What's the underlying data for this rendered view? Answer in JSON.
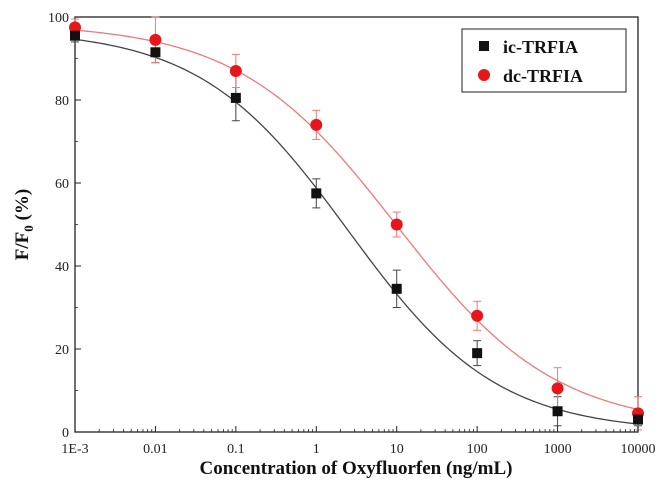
{
  "chart_data": {
    "type": "scatter",
    "xscale": "log",
    "x": [
      0.001,
      0.01,
      0.1,
      1,
      10,
      100,
      1000,
      10000
    ],
    "xlim": [
      0.001,
      10000
    ],
    "ylim": [
      0,
      100
    ],
    "x_tick_labels": [
      "1E-3",
      "0.01",
      "0.1",
      "1",
      "10",
      "100",
      "1000",
      "10000"
    ],
    "y_ticks": [
      0,
      20,
      40,
      60,
      80,
      100
    ],
    "y_tick_labels": [
      "0",
      "20",
      "40",
      "60",
      "80",
      "100"
    ],
    "xlabel": "Concentration of Oxyfluorfen (ng/mL)",
    "ylabel_main": "F/F",
    "ylabel_sub": "0",
    "ylabel_tail": " (%)",
    "legend_position": "top-right",
    "series": [
      {
        "name": "ic-TRFIA",
        "marker": "square",
        "color": "#111111",
        "curve_color": "#444444",
        "values": [
          95.5,
          91.5,
          80.5,
          57.5,
          34.5,
          19,
          5,
          3
        ],
        "errors": [
          1.5,
          2.5,
          5.5,
          3.5,
          4.5,
          3,
          3.5,
          1.5
        ],
        "fit": {
          "top": 97,
          "bottom": 0,
          "ec50": 2.5,
          "hill": 0.47
        }
      },
      {
        "name": "dc-TRFIA",
        "marker": "circle",
        "color": "#e8161b",
        "curve_color": "#f07878",
        "values": [
          97.5,
          94.5,
          87,
          74,
          50,
          28,
          10.5,
          4.5
        ],
        "errors": [
          2,
          5.5,
          4,
          3.5,
          3,
          3.5,
          5,
          4
        ],
        "fit": {
          "top": 98.5,
          "bottom": 1,
          "ec50": 10,
          "hill": 0.44
        }
      }
    ]
  }
}
